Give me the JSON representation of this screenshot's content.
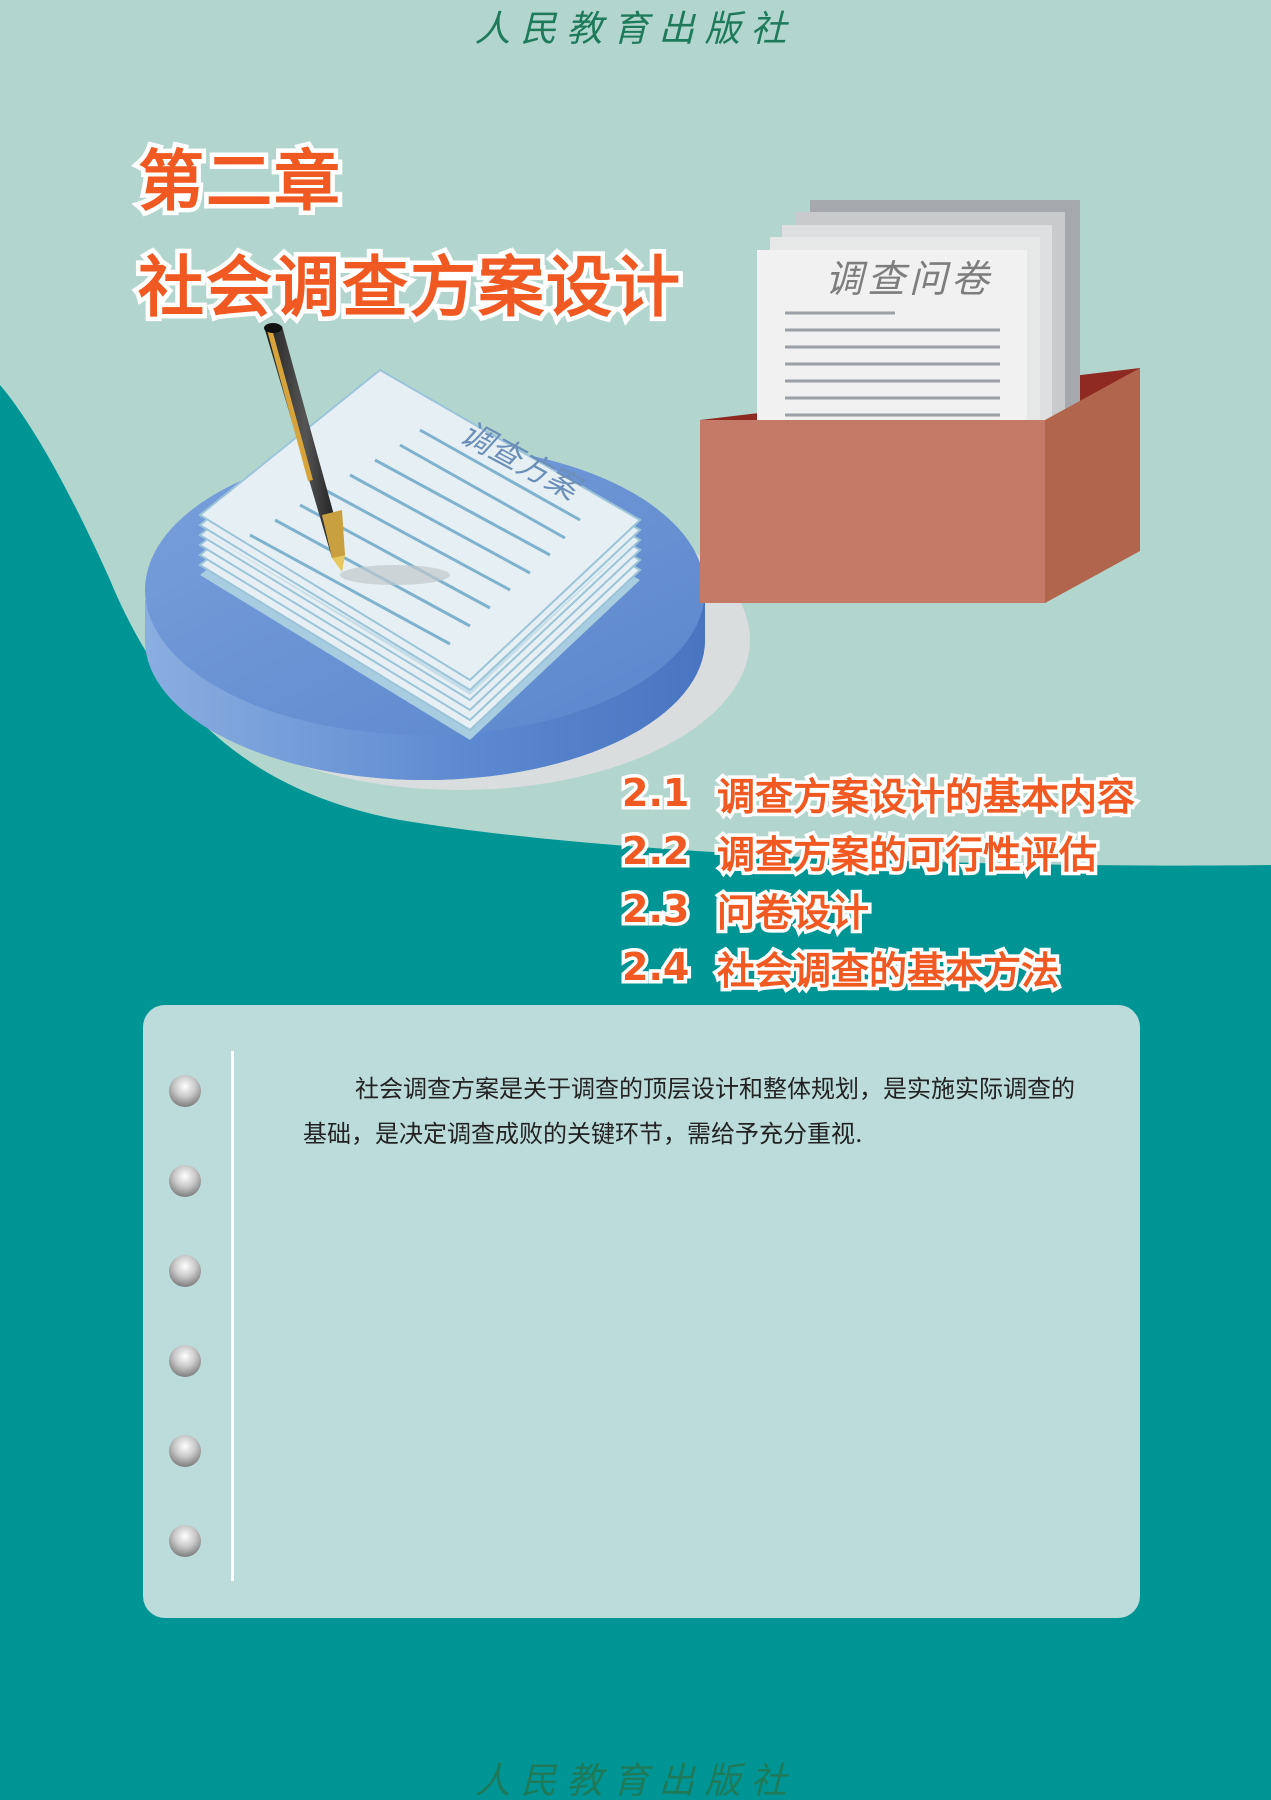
{
  "publisher": "人民教育出版社",
  "chapter": {
    "number_title": "第二章",
    "title": "社会调查方案设计"
  },
  "illustration": {
    "plan_label": "调查方案",
    "questionnaire_label": "调查问卷"
  },
  "toc": [
    {
      "number": "2.1",
      "title": "调查方案设计的基本内容"
    },
    {
      "number": "2.2",
      "title": "调查方案的可行性评估"
    },
    {
      "number": "2.3",
      "title": "问卷设计"
    },
    {
      "number": "2.4",
      "title": "社会调查的基本方法"
    }
  ],
  "intro": "社会调查方案是关于调查的顶层设计和整体规划，是实施实际调查的基础，是决定调查成败的关键环节，需给予充分重视.",
  "colors": {
    "accent": "#f05a22",
    "teal": "#009595",
    "light_teal": "#b2d6ce",
    "card": "#bcdcdc"
  }
}
